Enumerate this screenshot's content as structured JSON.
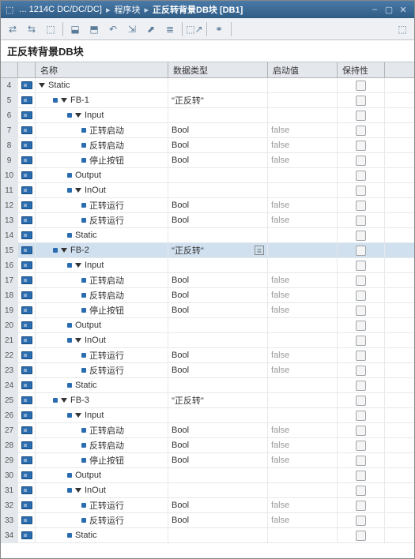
{
  "titlebar": {
    "crumbs": [
      "... 1214C DC/DC/DC]",
      "程序块",
      "正反转背景DB块 [DB1]"
    ]
  },
  "blockName": "正反转背景DB块",
  "headers": {
    "name": "名称",
    "dtype": "数据类型",
    "start": "启动值",
    "keep": "保持性"
  },
  "toolbar": {
    "icons": [
      "⇄",
      "⇆",
      "⬚",
      "|",
      "⬓",
      "⬒",
      "↶",
      "⇲",
      "⬈",
      "≣",
      "|",
      "⬚↗",
      "|",
      "⚭",
      "|",
      "⬚"
    ]
  },
  "rows": [
    {
      "n": 4,
      "ic": "db",
      "ind": 0,
      "tri": "d",
      "bul": 0,
      "name": "Static",
      "dt": "",
      "sv": "",
      "sel": 0
    },
    {
      "n": 5,
      "ic": "db",
      "ind": 1,
      "tri": "d",
      "bul": 1,
      "name": "FB-1",
      "dt": "\"正反转\"",
      "sv": "",
      "sel": 0
    },
    {
      "n": 6,
      "ic": "db",
      "ind": 2,
      "tri": "d",
      "bul": 1,
      "name": "Input",
      "dt": "",
      "sv": "",
      "sel": 0
    },
    {
      "n": 7,
      "ic": "db",
      "ind": 3,
      "tri": "",
      "bul": 1,
      "name": "正转启动",
      "dt": "Bool",
      "sv": "false",
      "sel": 0
    },
    {
      "n": 8,
      "ic": "db",
      "ind": 3,
      "tri": "",
      "bul": 1,
      "name": "反转启动",
      "dt": "Bool",
      "sv": "false",
      "sel": 0
    },
    {
      "n": 9,
      "ic": "db",
      "ind": 3,
      "tri": "",
      "bul": 1,
      "name": "停止按钮",
      "dt": "Bool",
      "sv": "false",
      "sel": 0
    },
    {
      "n": 10,
      "ic": "db",
      "ind": 2,
      "tri": "",
      "bul": 1,
      "name": "Output",
      "dt": "",
      "sv": "",
      "sel": 0
    },
    {
      "n": 11,
      "ic": "db",
      "ind": 2,
      "tri": "d",
      "bul": 1,
      "name": "InOut",
      "dt": "",
      "sv": "",
      "sel": 0
    },
    {
      "n": 12,
      "ic": "db",
      "ind": 3,
      "tri": "",
      "bul": 1,
      "name": "正转运行",
      "dt": "Bool",
      "sv": "false",
      "sel": 0
    },
    {
      "n": 13,
      "ic": "db",
      "ind": 3,
      "tri": "",
      "bul": 1,
      "name": "反转运行",
      "dt": "Bool",
      "sv": "false",
      "sel": 0
    },
    {
      "n": 14,
      "ic": "db",
      "ind": 2,
      "tri": "",
      "bul": 1,
      "name": "Static",
      "dt": "",
      "sv": "",
      "sel": 0
    },
    {
      "n": 15,
      "ic": "db",
      "ind": 1,
      "tri": "d",
      "bul": 1,
      "name": "FB-2",
      "dt": "\"正反转\"",
      "sv": "",
      "sel": 1,
      "opt": 1
    },
    {
      "n": 16,
      "ic": "db",
      "ind": 2,
      "tri": "d",
      "bul": 1,
      "name": "Input",
      "dt": "",
      "sv": "",
      "sel": 0
    },
    {
      "n": 17,
      "ic": "db",
      "ind": 3,
      "tri": "",
      "bul": 1,
      "name": "正转启动",
      "dt": "Bool",
      "sv": "false",
      "sel": 0
    },
    {
      "n": 18,
      "ic": "db",
      "ind": 3,
      "tri": "",
      "bul": 1,
      "name": "反转启动",
      "dt": "Bool",
      "sv": "false",
      "sel": 0
    },
    {
      "n": 19,
      "ic": "db",
      "ind": 3,
      "tri": "",
      "bul": 1,
      "name": "停止按钮",
      "dt": "Bool",
      "sv": "false",
      "sel": 0
    },
    {
      "n": 20,
      "ic": "db",
      "ind": 2,
      "tri": "",
      "bul": 1,
      "name": "Output",
      "dt": "",
      "sv": "",
      "sel": 0
    },
    {
      "n": 21,
      "ic": "db",
      "ind": 2,
      "tri": "d",
      "bul": 1,
      "name": "InOut",
      "dt": "",
      "sv": "",
      "sel": 0
    },
    {
      "n": 22,
      "ic": "db",
      "ind": 3,
      "tri": "",
      "bul": 1,
      "name": "正转运行",
      "dt": "Bool",
      "sv": "false",
      "sel": 0
    },
    {
      "n": 23,
      "ic": "db",
      "ind": 3,
      "tri": "",
      "bul": 1,
      "name": "反转运行",
      "dt": "Bool",
      "sv": "false",
      "sel": 0
    },
    {
      "n": 24,
      "ic": "db",
      "ind": 2,
      "tri": "",
      "bul": 1,
      "name": "Static",
      "dt": "",
      "sv": "",
      "sel": 0
    },
    {
      "n": 25,
      "ic": "db",
      "ind": 1,
      "tri": "d",
      "bul": 1,
      "name": "FB-3",
      "dt": "\"正反转\"",
      "sv": "",
      "sel": 0
    },
    {
      "n": 26,
      "ic": "db",
      "ind": 2,
      "tri": "d",
      "bul": 1,
      "name": "Input",
      "dt": "",
      "sv": "",
      "sel": 0
    },
    {
      "n": 27,
      "ic": "db",
      "ind": 3,
      "tri": "",
      "bul": 1,
      "name": "正转启动",
      "dt": "Bool",
      "sv": "false",
      "sel": 0
    },
    {
      "n": 28,
      "ic": "db",
      "ind": 3,
      "tri": "",
      "bul": 1,
      "name": "反转启动",
      "dt": "Bool",
      "sv": "false",
      "sel": 0
    },
    {
      "n": 29,
      "ic": "db",
      "ind": 3,
      "tri": "",
      "bul": 1,
      "name": "停止按钮",
      "dt": "Bool",
      "sv": "false",
      "sel": 0
    },
    {
      "n": 30,
      "ic": "db",
      "ind": 2,
      "tri": "",
      "bul": 1,
      "name": "Output",
      "dt": "",
      "sv": "",
      "sel": 0
    },
    {
      "n": 31,
      "ic": "db",
      "ind": 2,
      "tri": "d",
      "bul": 1,
      "name": "InOut",
      "dt": "",
      "sv": "",
      "sel": 0
    },
    {
      "n": 32,
      "ic": "db",
      "ind": 3,
      "tri": "",
      "bul": 1,
      "name": "正转运行",
      "dt": "Bool",
      "sv": "false",
      "sel": 0
    },
    {
      "n": 33,
      "ic": "db",
      "ind": 3,
      "tri": "",
      "bul": 1,
      "name": "反转运行",
      "dt": "Bool",
      "sv": "false",
      "sel": 0
    },
    {
      "n": 34,
      "ic": "db",
      "ind": 2,
      "tri": "",
      "bul": 1,
      "name": "Static",
      "dt": "",
      "sv": "",
      "sel": 0
    }
  ]
}
